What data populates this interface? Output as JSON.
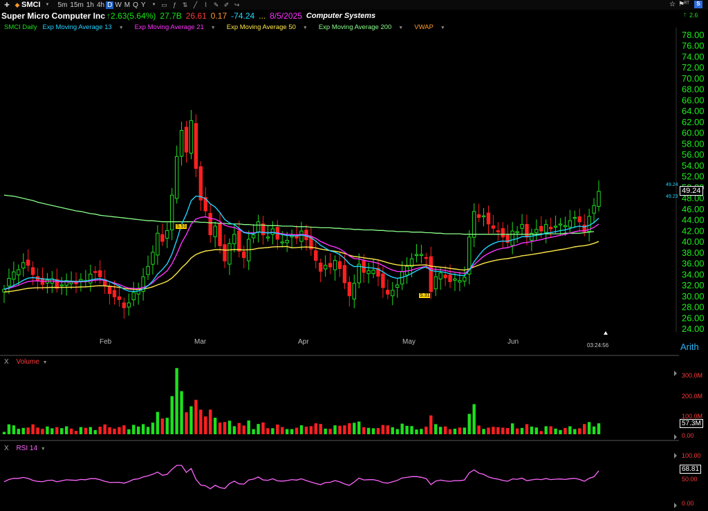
{
  "toolbar": {
    "symbol": "SMCI",
    "timeframes": [
      "5m",
      "15m",
      "1h",
      "4h",
      "D",
      "W",
      "M",
      "Q",
      "Y"
    ],
    "active_timeframe": "D",
    "right_badge": "RT",
    "right_change": "2.6"
  },
  "header": {
    "company": "Super Micro Computer Inc",
    "change": "↑2.63(5.64%)",
    "open": "27.7B",
    "low": "26.61",
    "eps": "0.17",
    "pe": "-74.24",
    "dots": "...",
    "date": "8/5/2025",
    "sector": "Computer Systems"
  },
  "legend": [
    {
      "label": "SMCI Daily",
      "color": "#1ee01e"
    },
    {
      "label": "Exp Moving Average 13",
      "color": "#22d3ff"
    },
    {
      "label": "Exp Moving Average 21",
      "color": "#ff33ff"
    },
    {
      "label": "Exp Moving Average 50",
      "color": "#ffe94a"
    },
    {
      "label": "Exp Moving Average 200",
      "color": "#8aff8a"
    },
    {
      "label": "VWAP",
      "color": "#ff9a2a"
    }
  ],
  "price_axis": [
    "78.00",
    "76.00",
    "74.00",
    "72.00",
    "70.00",
    "68.00",
    "66.00",
    "64.00",
    "62.00",
    "60.00",
    "58.00",
    "56.00",
    "54.00",
    "52.00",
    "50.00",
    "48.00",
    "46.00",
    "44.00",
    "42.00",
    "40.00",
    "38.00",
    "36.00",
    "34.00",
    "32.00",
    "30.00",
    "28.00",
    "26.00",
    "24.00"
  ],
  "months": [
    "Feb",
    "Mar",
    "Apr",
    "May",
    "Jun"
  ],
  "price_tags": {
    "last": "49.24",
    "ema13_tag": "49.24",
    "ema21_tag": "49.23"
  },
  "markers": [
    "S.51",
    "S.31"
  ],
  "axis_mode": "Arith",
  "timer": "03:24:56",
  "volume": {
    "pane_label": "Volume",
    "close": "X",
    "axis": [
      "300.0M",
      "200.0M",
      "100.0M",
      "0.00"
    ],
    "last": "57.3M"
  },
  "rsi": {
    "pane_label": "RSI 14",
    "close": "X",
    "axis": [
      "100.00",
      "50.00",
      "0.00"
    ],
    "last": "68.81"
  },
  "chart_data": {
    "type": "line",
    "series": [
      {
        "name": "SMCI Daily",
        "values": [
          31.2,
          33.2,
          34.4,
          34.8,
          36.1,
          35.6,
          33.9,
          32.7,
          32.1,
          32.9,
          33.1,
          31.4,
          32.0,
          32.8,
          32.5,
          32.2,
          33.0,
          32.8,
          34.0,
          34.3,
          33.5,
          31.8,
          30.4,
          29.8,
          29.3,
          27.8,
          28.7,
          30.6,
          31.3,
          33.5,
          35.4,
          38.0,
          41.5,
          40.0,
          42.0,
          48.5,
          55.6,
          60.4,
          56.4,
          62.2,
          53.4,
          47.6,
          45.6,
          41.2,
          42.8,
          39.2,
          36.4,
          39.6,
          41.3,
          38.2,
          37.0,
          40.4,
          41.2,
          43.6,
          41.2,
          40.8,
          42.3,
          40.4,
          39.9,
          40.2,
          41.0,
          40.6,
          41.9,
          40.3,
          38.6,
          36.5,
          34.5,
          35.6,
          35.3,
          36.5,
          35.0,
          32.4,
          30.0,
          32.3,
          35.8,
          34.3,
          34.6,
          34.7,
          33.6,
          31.5,
          30.3,
          31.0,
          32.0,
          34.4,
          35.4,
          36.8,
          37.6,
          37.6,
          36.9,
          30.8,
          33.5,
          34.2,
          33.3,
          32.6,
          33.1,
          32.8,
          33.4,
          40.8,
          45.5,
          44.4,
          44.7,
          43.2,
          42.4,
          41.9,
          40.8,
          39.8,
          41.9,
          41.8,
          43.1,
          40.8,
          41.5,
          42.2,
          41.9,
          43.1,
          42.3,
          42.8,
          43.2,
          42.9,
          43.8,
          44.4,
          43.6,
          41.8,
          44.6,
          46.6,
          49.2
        ],
        "color": "#1ee01e"
      },
      {
        "name": "Exp Moving Average 200",
        "values": [
          48.5,
          48.4,
          48.3,
          48.1,
          47.9,
          47.7,
          47.5,
          47.2,
          47.0,
          46.8,
          46.6,
          46.4,
          46.2,
          46.0,
          45.8,
          45.6,
          45.5,
          45.3,
          45.1,
          45.0,
          44.8,
          44.7,
          44.6,
          44.5,
          44.4,
          44.3,
          44.2,
          44.1,
          44.0,
          43.9,
          43.8,
          43.8,
          43.7,
          43.6,
          43.6,
          43.6,
          43.6,
          43.6,
          43.6,
          43.6,
          43.6,
          43.5,
          43.5,
          43.4,
          43.4,
          43.3,
          43.3,
          43.2,
          43.2,
          43.2,
          43.1,
          43.1,
          43.0,
          43.0,
          43.0,
          42.9,
          42.9,
          42.9,
          42.8,
          42.8,
          42.8,
          42.7,
          42.7,
          42.7,
          42.6,
          42.6,
          42.5,
          42.5,
          42.5,
          42.4,
          42.4,
          42.3,
          42.3,
          42.2,
          42.2,
          42.1,
          42.1,
          42.1,
          42.0,
          42.0,
          41.9,
          41.9,
          41.8,
          41.8,
          41.8,
          41.7,
          41.7,
          41.7,
          41.6,
          41.6,
          41.5,
          41.5,
          41.4,
          41.4,
          41.4,
          41.4,
          41.3,
          41.3,
          41.3,
          41.3,
          41.3,
          41.3,
          41.3,
          41.3,
          41.3,
          41.3,
          41.3,
          41.3,
          41.3,
          41.3,
          41.3,
          41.3,
          41.4,
          41.4,
          41.4,
          41.4,
          41.4,
          41.5,
          41.5,
          41.5,
          41.5,
          41.6,
          41.7,
          41.8
        ],
        "color": "#8aff8a"
      }
    ],
    "ylim": [
      23,
      80
    ]
  }
}
